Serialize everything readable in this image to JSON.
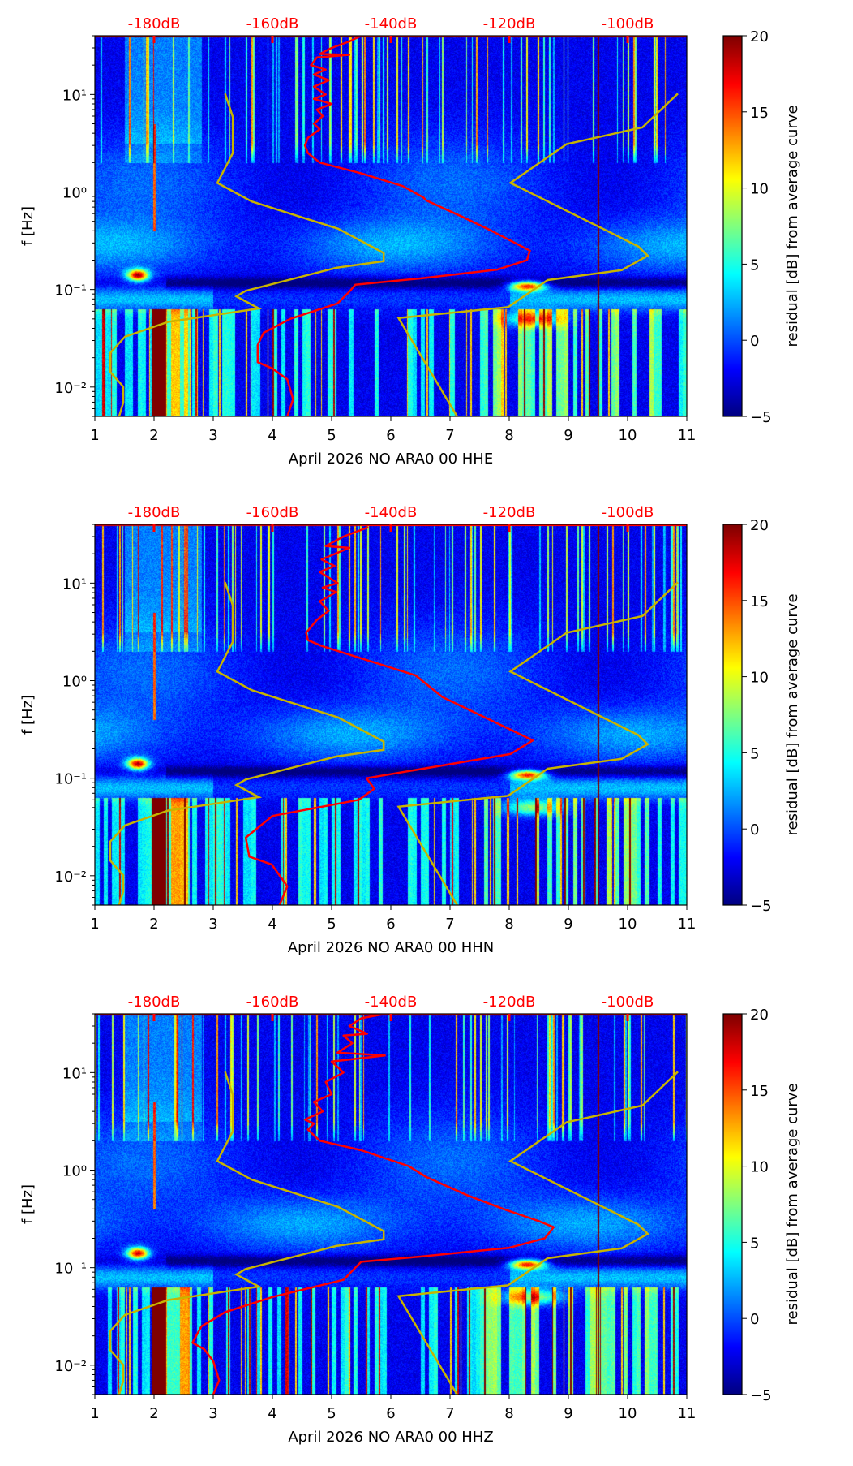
{
  "chart_data": {
    "type": "heatmap",
    "x_ticks": [
      1,
      2,
      3,
      4,
      5,
      6,
      7,
      8,
      9,
      10,
      11
    ],
    "xlim": [
      1,
      11
    ],
    "ylim_hz": [
      0.005,
      40
    ],
    "yscale": "log",
    "ylabel": "f [Hz]",
    "y_ticks": [
      {
        "value": 10,
        "label": "10¹"
      },
      {
        "value": 1,
        "label": "10⁰"
      },
      {
        "value": 0.1,
        "label": "10⁻¹"
      },
      {
        "value": 0.01,
        "label": "10⁻²"
      }
    ],
    "top_axis": {
      "color": "#ff0000",
      "ticks": [
        {
          "x": 2,
          "label": "-180dB"
        },
        {
          "x": 4,
          "label": "-160dB"
        },
        {
          "x": 6,
          "label": "-140dB"
        },
        {
          "x": 8,
          "label": "-120dB"
        },
        {
          "x": 10,
          "label": "-100dB"
        }
      ]
    },
    "colorbar": {
      "label": "residual [dB] from average curve",
      "range": [
        -5,
        20
      ],
      "ticks": [
        {
          "value": 20,
          "label": "20"
        },
        {
          "value": 15,
          "label": "15"
        },
        {
          "value": 10,
          "label": "10"
        },
        {
          "value": 5,
          "label": "5"
        },
        {
          "value": 0,
          "label": "0"
        },
        {
          "value": -5,
          "label": "−5"
        }
      ],
      "colormap": "jet"
    },
    "model_curves": {
      "color": "#c8b400",
      "low_noise_model": [
        [
          3.2,
          10.2
        ],
        [
          3.33,
          5.9
        ],
        [
          3.33,
          2.5
        ],
        [
          3.07,
          1.24
        ],
        [
          3.65,
          0.8
        ],
        [
          5.11,
          0.42
        ],
        [
          5.88,
          0.237
        ],
        [
          5.88,
          0.195
        ],
        [
          5.08,
          0.167
        ],
        [
          3.55,
          0.097
        ],
        [
          3.39,
          0.085
        ],
        [
          3.77,
          0.064
        ],
        [
          2.24,
          0.0466
        ],
        [
          1.51,
          0.0328
        ],
        [
          1.26,
          0.0224
        ],
        [
          1.26,
          0.0143
        ],
        [
          1.48,
          0.0101
        ],
        [
          1.48,
          0.0069
        ],
        [
          1.41,
          0.005
        ]
      ],
      "high_noise_model": [
        [
          10.85,
          10.2
        ],
        [
          10.25,
          4.6
        ],
        [
          8.97,
          3.1
        ],
        [
          8.02,
          1.24
        ],
        [
          10.18,
          0.277
        ],
        [
          10.34,
          0.222
        ],
        [
          9.9,
          0.158
        ],
        [
          8.65,
          0.125
        ],
        [
          7.98,
          0.066
        ],
        [
          6.13,
          0.051
        ],
        [
          7.12,
          0.005
        ]
      ]
    },
    "panels": [
      {
        "xlabel": "April 2026 NO ARA0 00 HHE",
        "average_curve": [
          [
            5.5,
            40
          ],
          [
            5.3,
            35
          ],
          [
            5.0,
            30
          ],
          [
            4.8,
            26
          ],
          [
            5.3,
            25.5
          ],
          [
            4.75,
            24
          ],
          [
            4.65,
            20
          ],
          [
            4.9,
            18
          ],
          [
            4.7,
            16
          ],
          [
            4.95,
            14
          ],
          [
            4.7,
            12
          ],
          [
            4.9,
            10
          ],
          [
            4.7,
            9
          ],
          [
            5.0,
            8
          ],
          [
            4.75,
            7
          ],
          [
            4.85,
            6
          ],
          [
            4.7,
            5
          ],
          [
            4.8,
            4.4
          ],
          [
            4.6,
            3.6
          ],
          [
            4.55,
            3.0
          ],
          [
            4.6,
            2.5
          ],
          [
            4.8,
            2.0
          ],
          [
            5.5,
            1.55
          ],
          [
            6.2,
            1.15
          ],
          [
            6.55,
            0.88
          ],
          [
            6.6,
            0.82
          ],
          [
            7.2,
            0.56
          ],
          [
            7.7,
            0.4
          ],
          [
            8.1,
            0.3
          ],
          [
            8.35,
            0.25
          ],
          [
            8.3,
            0.2
          ],
          [
            7.8,
            0.16
          ],
          [
            6.5,
            0.13
          ],
          [
            5.4,
            0.112
          ],
          [
            5.3,
            0.095
          ],
          [
            5.1,
            0.072
          ],
          [
            4.3,
            0.05
          ],
          [
            3.85,
            0.036
          ],
          [
            3.75,
            0.027
          ],
          [
            3.75,
            0.018
          ],
          [
            4.0,
            0.0155
          ],
          [
            4.25,
            0.012
          ],
          [
            4.35,
            0.0075
          ],
          [
            4.25,
            0.005
          ]
        ]
      },
      {
        "xlabel": "April 2026 NO ARA0 00 HHN",
        "average_curve": [
          [
            5.62,
            37.5
          ],
          [
            5.2,
            30
          ],
          [
            4.9,
            24
          ],
          [
            5.3,
            23
          ],
          [
            4.83,
            17.5
          ],
          [
            5.05,
            15
          ],
          [
            4.8,
            13
          ],
          [
            5.1,
            10
          ],
          [
            4.85,
            9
          ],
          [
            5.08,
            8.1
          ],
          [
            4.8,
            6.5
          ],
          [
            4.95,
            5.2
          ],
          [
            4.75,
            4.2
          ],
          [
            4.57,
            3.1
          ],
          [
            4.6,
            2.6
          ],
          [
            4.83,
            2.27
          ],
          [
            6.42,
            1.13
          ],
          [
            6.87,
            0.68
          ],
          [
            8.4,
            0.244
          ],
          [
            8.02,
            0.177
          ],
          [
            5.59,
            0.1
          ],
          [
            5.72,
            0.078
          ],
          [
            5.46,
            0.06
          ],
          [
            4.0,
            0.041
          ],
          [
            3.55,
            0.0246
          ],
          [
            3.61,
            0.0157
          ],
          [
            3.99,
            0.013
          ],
          [
            4.25,
            0.0078
          ],
          [
            4.12,
            0.005
          ]
        ]
      },
      {
        "xlabel": "April 2026 NO ARA0 00 HHZ",
        "average_curve": [
          [
            5.9,
            40
          ],
          [
            5.5,
            36
          ],
          [
            5.3,
            30
          ],
          [
            5.6,
            25
          ],
          [
            5.2,
            24
          ],
          [
            5.35,
            20
          ],
          [
            5.1,
            16
          ],
          [
            5.9,
            15
          ],
          [
            5.0,
            13
          ],
          [
            5.2,
            10
          ],
          [
            4.9,
            8
          ],
          [
            5.0,
            6
          ],
          [
            4.7,
            5
          ],
          [
            4.85,
            4
          ],
          [
            4.55,
            3.3
          ],
          [
            4.7,
            3.0
          ],
          [
            4.6,
            2.6
          ],
          [
            4.8,
            2.0
          ],
          [
            5.5,
            1.6
          ],
          [
            6.3,
            1.1
          ],
          [
            6.6,
            0.85
          ],
          [
            7.3,
            0.55
          ],
          [
            7.9,
            0.4
          ],
          [
            8.5,
            0.3
          ],
          [
            8.75,
            0.26
          ],
          [
            8.6,
            0.2
          ],
          [
            8.0,
            0.16
          ],
          [
            6.5,
            0.13
          ],
          [
            5.5,
            0.115
          ],
          [
            5.4,
            0.1
          ],
          [
            5.2,
            0.075
          ],
          [
            4.0,
            0.05
          ],
          [
            3.2,
            0.035
          ],
          [
            2.8,
            0.025
          ],
          [
            2.65,
            0.017
          ],
          [
            2.85,
            0.0145
          ],
          [
            3.0,
            0.011
          ],
          [
            3.1,
            0.007
          ],
          [
            3.0,
            0.005
          ]
        ]
      }
    ]
  }
}
